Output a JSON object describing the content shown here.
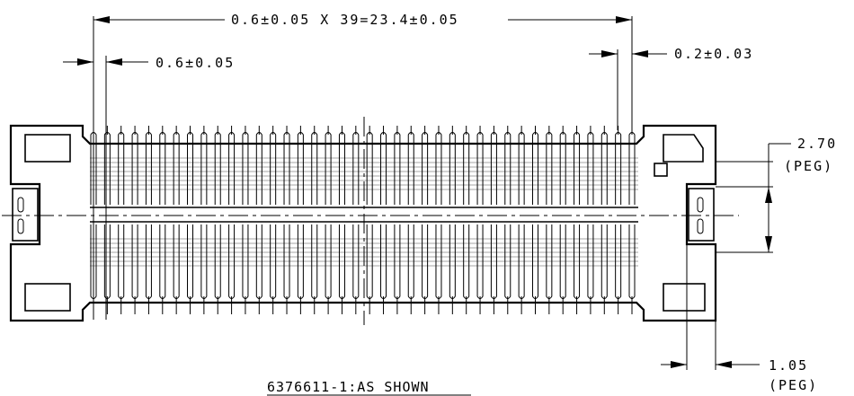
{
  "dimensions": {
    "pitch_total": "0.6±0.05 X 39=23.4±0.05",
    "pitch": "0.6±0.05",
    "contact_width": "0.2±0.03",
    "peg_height_value": "2.70",
    "peg_height_note": "(PEG)",
    "peg_width_value": "1.05",
    "peg_width_note": "(PEG)"
  },
  "caption": "6376611-1:AS SHOWN",
  "connector": {
    "contacts_per_row": 40,
    "rows": 2
  }
}
